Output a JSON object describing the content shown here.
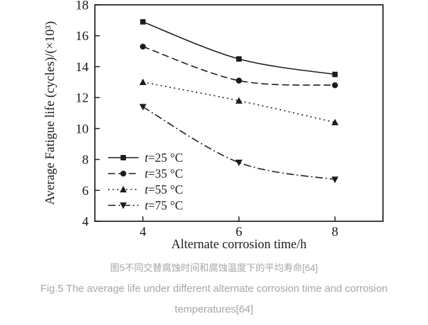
{
  "captions": {
    "zh": "图5不同交替腐蚀时间和腐蚀温度下的平均寿命[64]",
    "en_line1": "Fig.5 The average life under different alternate corrosion time and corrosion",
    "en_line2": "temperatures[64]"
  },
  "chart_data": {
    "type": "line",
    "title": "",
    "xlabel": "Alternate corrosion time/h",
    "ylabel": "Average Fatigue life (cycles)/(×10³)",
    "x": [
      4,
      6,
      8
    ],
    "xlim": [
      3,
      9
    ],
    "ylim": [
      4,
      18
    ],
    "xticks": [
      4,
      6,
      8
    ],
    "yticks": [
      4,
      6,
      8,
      10,
      12,
      14,
      16,
      18
    ],
    "grid": false,
    "legend_position": "lower-left",
    "axis_color": "#1c1c1c",
    "series": [
      {
        "name": "t=25 °C",
        "values": [
          16.9,
          14.5,
          13.5
        ],
        "marker": "square",
        "line_style": "solid",
        "color": "#1c1c1c"
      },
      {
        "name": "t=35 °C",
        "values": [
          15.3,
          13.1,
          12.8
        ],
        "marker": "circle",
        "line_style": "dashed",
        "color": "#1c1c1c"
      },
      {
        "name": "t=55 °C",
        "values": [
          13.0,
          11.8,
          10.4
        ],
        "marker": "triangle-up",
        "line_style": "dotted",
        "color": "#1c1c1c"
      },
      {
        "name": "t=75 °C",
        "values": [
          11.4,
          7.8,
          6.7
        ],
        "marker": "triangle-down",
        "line_style": "dashdot",
        "color": "#1c1c1c"
      }
    ]
  }
}
